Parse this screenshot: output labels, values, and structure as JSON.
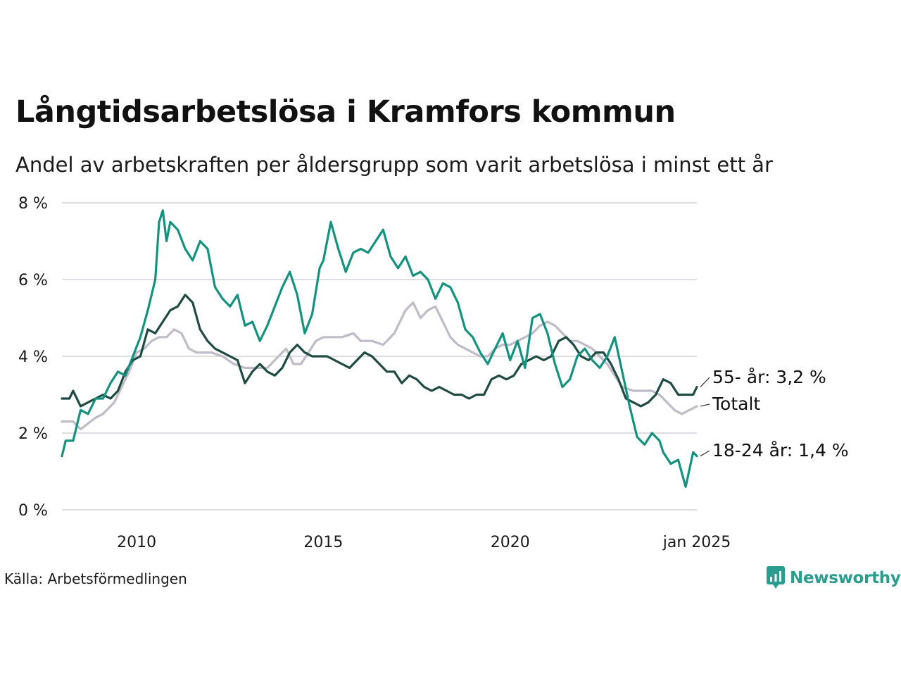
{
  "header": {
    "title": "Långtidsarbetslösa i Kramfors kommun",
    "subtitle": "Andel av arbetskraften per åldersgrupp som varit arbetslösa i minst ett år"
  },
  "footer": {
    "source": "Källa: Arbetsförmedlingen",
    "brand": "Newsworthy"
  },
  "chart_data": {
    "type": "line",
    "ylim": [
      0,
      8
    ],
    "xlim": [
      2008.0,
      2025.0
    ],
    "grid": true,
    "y_ticks": [
      {
        "value": 0,
        "label": "0 %"
      },
      {
        "value": 2,
        "label": "2 %"
      },
      {
        "value": 4,
        "label": "4 %"
      },
      {
        "value": 6,
        "label": "6 %"
      },
      {
        "value": 8,
        "label": "8 %"
      }
    ],
    "x_ticks": [
      {
        "value": 2010,
        "label": "2010"
      },
      {
        "value": 2015,
        "label": "2015"
      },
      {
        "value": 2020,
        "label": "2020"
      },
      {
        "value": 2025,
        "label": "jan 2025"
      }
    ],
    "colors": {
      "totalt": "#bfbbc8",
      "age55": "#1f4b43",
      "age1824": "#15917f"
    },
    "series": [
      {
        "key": "totalt",
        "label": "Totalt",
        "x": [
          2008.0,
          2008.3,
          2008.5,
          2008.9,
          2009.1,
          2009.4,
          2009.6,
          2009.8,
          2010.0,
          2010.2,
          2010.4,
          2010.6,
          2010.8,
          2011.0,
          2011.2,
          2011.4,
          2011.6,
          2011.8,
          2012.0,
          2012.3,
          2012.6,
          2012.9,
          2013.2,
          2013.5,
          2013.8,
          2014.0,
          2014.2,
          2014.4,
          2014.6,
          2014.8,
          2015.0,
          2015.2,
          2015.5,
          2015.8,
          2016.0,
          2016.3,
          2016.6,
          2016.9,
          2017.2,
          2017.4,
          2017.6,
          2017.8,
          2018.0,
          2018.2,
          2018.4,
          2018.6,
          2018.8,
          2019.0,
          2019.2,
          2019.4,
          2019.6,
          2019.8,
          2020.0,
          2020.2,
          2020.4,
          2020.6,
          2020.8,
          2021.0,
          2021.2,
          2021.4,
          2021.6,
          2021.8,
          2022.0,
          2022.2,
          2022.4,
          2022.6,
          2022.8,
          2023.0,
          2023.3,
          2023.6,
          2023.8,
          2024.0,
          2024.2,
          2024.4,
          2024.6,
          2024.8,
          2025.0
        ],
        "y": [
          2.3,
          2.3,
          2.1,
          2.4,
          2.5,
          2.8,
          3.2,
          3.6,
          4.1,
          4.2,
          4.4,
          4.5,
          4.5,
          4.7,
          4.6,
          4.2,
          4.1,
          4.1,
          4.1,
          4.0,
          3.8,
          3.7,
          3.7,
          3.7,
          4.0,
          4.2,
          3.8,
          3.8,
          4.1,
          4.4,
          4.5,
          4.5,
          4.5,
          4.6,
          4.4,
          4.4,
          4.3,
          4.6,
          5.2,
          5.4,
          5.0,
          5.2,
          5.3,
          4.9,
          4.5,
          4.3,
          4.2,
          4.1,
          4.0,
          4.0,
          4.2,
          4.3,
          4.3,
          4.4,
          4.5,
          4.6,
          4.8,
          4.9,
          4.8,
          4.6,
          4.4,
          4.4,
          4.3,
          4.2,
          4.0,
          3.8,
          3.5,
          3.2,
          3.1,
          3.1,
          3.1,
          3.0,
          2.8,
          2.6,
          2.5,
          2.6,
          2.7
        ]
      },
      {
        "key": "age55",
        "label": "55- år: 3,2 %",
        "x": [
          2008.0,
          2008.2,
          2008.3,
          2008.5,
          2008.7,
          2008.9,
          2009.1,
          2009.3,
          2009.5,
          2009.7,
          2009.9,
          2010.1,
          2010.3,
          2010.5,
          2010.7,
          2010.9,
          2011.1,
          2011.3,
          2011.5,
          2011.7,
          2011.9,
          2012.1,
          2012.3,
          2012.5,
          2012.7,
          2012.9,
          2013.1,
          2013.3,
          2013.5,
          2013.7,
          2013.9,
          2014.1,
          2014.3,
          2014.5,
          2014.7,
          2014.9,
          2015.1,
          2015.3,
          2015.5,
          2015.7,
          2015.9,
          2016.1,
          2016.3,
          2016.5,
          2016.7,
          2016.9,
          2017.1,
          2017.3,
          2017.5,
          2017.7,
          2017.9,
          2018.1,
          2018.3,
          2018.5,
          2018.7,
          2018.9,
          2019.1,
          2019.3,
          2019.5,
          2019.7,
          2019.9,
          2020.1,
          2020.3,
          2020.5,
          2020.7,
          2020.9,
          2021.1,
          2021.3,
          2021.5,
          2021.7,
          2021.9,
          2022.1,
          2022.3,
          2022.5,
          2022.7,
          2022.9,
          2023.1,
          2023.3,
          2023.5,
          2023.7,
          2023.9,
          2024.1,
          2024.3,
          2024.5,
          2024.7,
          2024.9,
          2025.0
        ],
        "y": [
          2.9,
          2.9,
          3.1,
          2.7,
          2.8,
          2.9,
          3.0,
          2.9,
          3.1,
          3.6,
          3.9,
          4.0,
          4.7,
          4.6,
          4.9,
          5.2,
          5.3,
          5.6,
          5.4,
          4.7,
          4.4,
          4.2,
          4.1,
          4.0,
          3.9,
          3.3,
          3.6,
          3.8,
          3.6,
          3.5,
          3.7,
          4.1,
          4.3,
          4.1,
          4.0,
          4.0,
          4.0,
          3.9,
          3.8,
          3.7,
          3.9,
          4.1,
          4.0,
          3.8,
          3.6,
          3.6,
          3.3,
          3.5,
          3.4,
          3.2,
          3.1,
          3.2,
          3.1,
          3.0,
          3.0,
          2.9,
          3.0,
          3.0,
          3.4,
          3.5,
          3.4,
          3.5,
          3.8,
          3.9,
          4.0,
          3.9,
          4.0,
          4.4,
          4.5,
          4.3,
          4.0,
          3.9,
          4.1,
          4.1,
          3.8,
          3.4,
          2.9,
          2.8,
          2.7,
          2.8,
          3.0,
          3.4,
          3.3,
          3.0,
          3.0,
          3.0,
          3.2
        ]
      },
      {
        "key": "age1824",
        "label": "18-24 år: 1,4 %",
        "x": [
          2008.0,
          2008.1,
          2008.3,
          2008.5,
          2008.7,
          2008.9,
          2009.1,
          2009.3,
          2009.5,
          2009.7,
          2009.9,
          2010.1,
          2010.3,
          2010.5,
          2010.6,
          2010.7,
          2010.8,
          2010.9,
          2011.1,
          2011.3,
          2011.5,
          2011.7,
          2011.9,
          2012.1,
          2012.3,
          2012.5,
          2012.7,
          2012.9,
          2013.1,
          2013.3,
          2013.5,
          2013.7,
          2013.9,
          2014.1,
          2014.3,
          2014.5,
          2014.7,
          2014.9,
          2015.0,
          2015.2,
          2015.4,
          2015.6,
          2015.8,
          2016.0,
          2016.2,
          2016.4,
          2016.6,
          2016.8,
          2017.0,
          2017.2,
          2017.4,
          2017.6,
          2017.8,
          2018.0,
          2018.2,
          2018.4,
          2018.6,
          2018.8,
          2019.0,
          2019.2,
          2019.4,
          2019.6,
          2019.8,
          2020.0,
          2020.2,
          2020.4,
          2020.6,
          2020.8,
          2021.0,
          2021.2,
          2021.4,
          2021.6,
          2021.8,
          2022.0,
          2022.2,
          2022.4,
          2022.6,
          2022.8,
          2023.0,
          2023.2,
          2023.4,
          2023.6,
          2023.8,
          2024.0,
          2024.1,
          2024.3,
          2024.5,
          2024.7,
          2024.9,
          2025.0
        ],
        "y": [
          1.4,
          1.8,
          1.8,
          2.6,
          2.5,
          2.9,
          2.9,
          3.3,
          3.6,
          3.5,
          4.0,
          4.5,
          5.2,
          6.0,
          7.5,
          7.8,
          7.0,
          7.5,
          7.3,
          6.8,
          6.5,
          7.0,
          6.8,
          5.8,
          5.5,
          5.3,
          5.6,
          4.8,
          4.9,
          4.4,
          4.8,
          5.3,
          5.8,
          6.2,
          5.6,
          4.6,
          5.1,
          6.3,
          6.5,
          7.5,
          6.8,
          6.2,
          6.7,
          6.8,
          6.7,
          7.0,
          7.3,
          6.6,
          6.3,
          6.6,
          6.1,
          6.2,
          6.0,
          5.5,
          5.9,
          5.8,
          5.4,
          4.7,
          4.5,
          4.1,
          3.8,
          4.2,
          4.6,
          3.9,
          4.4,
          3.7,
          5.0,
          5.1,
          4.6,
          3.8,
          3.2,
          3.4,
          4.0,
          4.2,
          3.9,
          3.7,
          4.0,
          4.5,
          3.6,
          2.7,
          1.9,
          1.7,
          2.0,
          1.8,
          1.5,
          1.2,
          1.3,
          0.6,
          1.5,
          1.4
        ]
      }
    ]
  }
}
